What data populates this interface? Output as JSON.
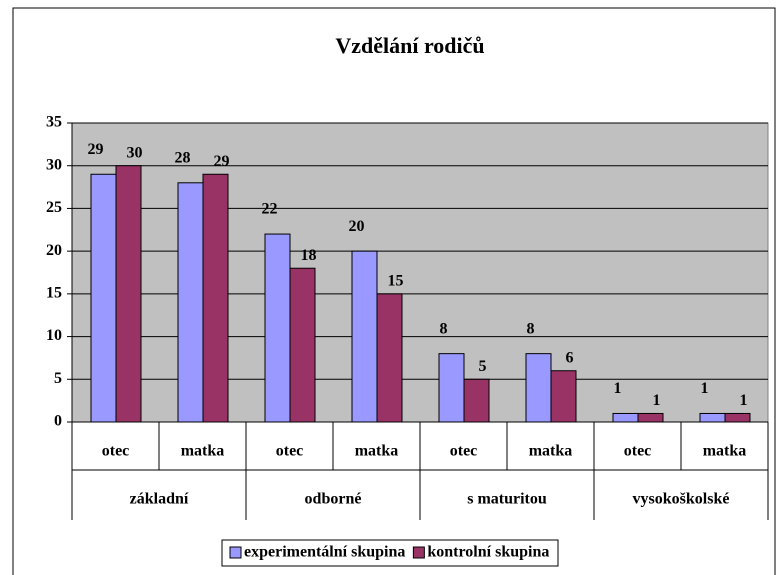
{
  "chart_data": {
    "type": "bar",
    "title": "Vzdělání rodičů",
    "categories": [
      "otec",
      "matka",
      "otec",
      "matka",
      "otec",
      "matka",
      "otec",
      "matka"
    ],
    "groups": [
      {
        "name": "základní",
        "span": 2
      },
      {
        "name": "odborné",
        "span": 2
      },
      {
        "name": "s maturitou",
        "span": 2
      },
      {
        "name": "vysokoškolské",
        "span": 2
      }
    ],
    "series": [
      {
        "name": "experimentální skupina",
        "color": "#9999ff",
        "values": [
          29,
          28,
          22,
          20,
          8,
          8,
          1,
          1
        ]
      },
      {
        "name": "kontrolní skupina",
        "color": "#993366",
        "values": [
          30,
          29,
          18,
          15,
          5,
          6,
          1,
          1
        ]
      }
    ],
    "ylim": [
      0,
      35
    ],
    "yticks": [
      0,
      5,
      10,
      15,
      20,
      25,
      30,
      35
    ],
    "grid": true,
    "legend": "bottom",
    "plot_background": "#c0c0c0"
  }
}
